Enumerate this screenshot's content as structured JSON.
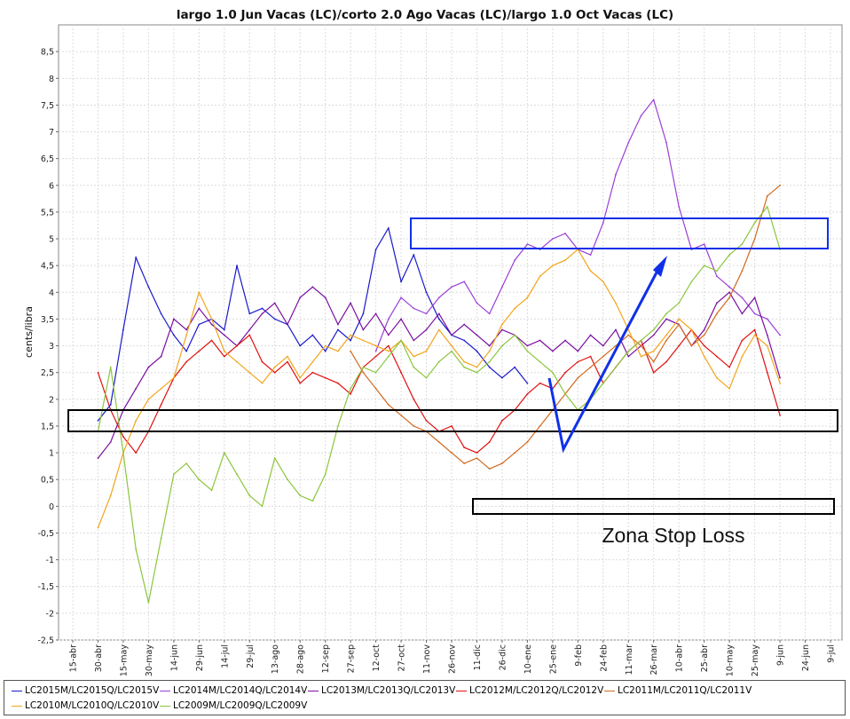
{
  "colors": {
    "LC2015": "#1a1acc",
    "LC2014": "#9a3fd6",
    "LC2013": "#7a0fa0",
    "LC2012": "#e01010",
    "LC2011": "#d26a1f",
    "LC2010": "#f2a51c",
    "LC2009": "#8cc63e",
    "annotation_blue": "#1030e8",
    "annotation_black": "#000000"
  },
  "chart_data": {
    "type": "line",
    "title": "largo 1.0 Jun Vacas (LC)/corto 2.0 Ago Vacas (LC)/largo 1.0 Oct Vacas (LC)",
    "xlabel": "",
    "ylabel": "cents/libra",
    "ylim": [
      -2.5,
      9
    ],
    "yticks": [
      "-2,5",
      "-2",
      "-1,5",
      "-1",
      "-0,5",
      "0",
      "0,5",
      "1",
      "1,5",
      "2",
      "2,5",
      "3",
      "3,5",
      "4",
      "4,5",
      "5",
      "5,5",
      "6",
      "6,5",
      "7",
      "7,5",
      "8",
      "8,5"
    ],
    "ytick_values": [
      -2.5,
      -2,
      -1.5,
      -1,
      -0.5,
      0,
      0.5,
      1,
      1.5,
      2,
      2.5,
      3,
      3.5,
      4,
      4.5,
      5,
      5.5,
      6,
      6.5,
      7,
      7.5,
      8,
      8.5
    ],
    "categories": [
      "15-abr",
      "30-abr",
      "15-may",
      "30-may",
      "14-jun",
      "29-jun",
      "14-jul",
      "29-jul",
      "13-ago",
      "28-ago",
      "12-sep",
      "27-sep",
      "12-oct",
      "27-oct",
      "11-nov",
      "26-nov",
      "11-dic",
      "26-dic",
      "10-ene",
      "25-ene",
      "9-feb",
      "24-feb",
      "11-mar",
      "26-mar",
      "10-abr",
      "25-abr",
      "10-may",
      "25-may",
      "9-jun",
      "24-jun",
      "9-jul"
    ],
    "x_index_range": [
      0,
      30
    ],
    "series": [
      {
        "name": "LC2015M/LC2015Q/LC2015V",
        "key": "LC2015",
        "x": [
          1,
          1.5,
          2,
          2.5,
          3,
          3.5,
          4,
          4.5,
          5,
          5.5,
          6,
          6.5,
          7,
          7.5,
          8,
          8.5,
          9,
          9.5,
          10,
          10.5,
          11,
          11.5,
          12,
          12.5,
          13,
          13.5,
          14,
          14.5,
          15,
          15.5,
          16,
          16.5,
          17,
          17.5,
          18,
          18.5,
          19,
          19.5,
          20,
          20.5,
          21,
          21.5,
          22,
          22.5,
          23,
          23.5,
          24,
          24.5,
          25,
          25.5,
          26,
          26.5,
          27,
          27.5,
          28,
          28.5,
          29,
          29.5,
          30
        ],
        "values": [
          1.6,
          1.9,
          3.3,
          4.65,
          4.1,
          3.6,
          3.2,
          2.9,
          3.4,
          3.5,
          3.3,
          4.5,
          3.6,
          3.7,
          3.5,
          3.4,
          3.0,
          3.2,
          2.9,
          3.3,
          3.1,
          3.6,
          4.8,
          5.2,
          4.2,
          4.7,
          4.0,
          3.5,
          3.2,
          3.1,
          2.9,
          2.6,
          2.4,
          2.6,
          2.3,
          null,
          null,
          null,
          null,
          null,
          null,
          null,
          null,
          null,
          null,
          null,
          null,
          null,
          null,
          null,
          null,
          null,
          null,
          null,
          null,
          null,
          null,
          null,
          null
        ]
      },
      {
        "name": "LC2014M/LC2014Q/LC2014V",
        "key": "LC2014",
        "x": [
          1,
          1.5,
          2,
          2.5,
          3,
          3.5,
          4,
          4.5,
          5,
          5.5,
          6,
          6.5,
          7,
          7.5,
          8,
          8.5,
          9,
          9.5,
          10,
          10.5,
          11,
          11.5,
          12,
          12.5,
          13,
          13.5,
          14,
          14.5,
          15,
          15.5,
          16,
          16.5,
          17,
          17.5,
          18,
          18.5,
          19,
          19.5,
          20,
          20.5,
          21,
          21.5,
          22,
          22.5,
          23,
          23.5,
          24,
          24.5,
          25,
          25.5,
          26,
          26.5,
          27,
          27.5,
          28,
          28.5,
          29,
          29.5,
          30
        ],
        "values": [
          null,
          null,
          null,
          null,
          null,
          null,
          null,
          null,
          null,
          null,
          null,
          null,
          null,
          null,
          null,
          null,
          null,
          null,
          null,
          null,
          null,
          null,
          2.9,
          3.5,
          3.9,
          3.7,
          3.6,
          3.9,
          4.1,
          4.2,
          3.8,
          3.6,
          4.1,
          4.6,
          4.9,
          4.8,
          5.0,
          5.1,
          4.8,
          4.7,
          5.3,
          6.2,
          6.8,
          7.3,
          7.6,
          6.8,
          5.6,
          4.8,
          4.9,
          4.3,
          4.1,
          3.9,
          3.6,
          3.5,
          3.2,
          null,
          null,
          null,
          null
        ]
      },
      {
        "name": "LC2013M/LC2013Q/LC2013V",
        "key": "LC2013",
        "x": [
          1,
          1.5,
          2,
          2.5,
          3,
          3.5,
          4,
          4.5,
          5,
          5.5,
          6,
          6.5,
          7,
          7.5,
          8,
          8.5,
          9,
          9.5,
          10,
          10.5,
          11,
          11.5,
          12,
          12.5,
          13,
          13.5,
          14,
          14.5,
          15,
          15.5,
          16,
          16.5,
          17,
          17.5,
          18,
          18.5,
          19,
          19.5,
          20,
          20.5,
          21,
          21.5,
          22,
          22.5,
          23,
          23.5,
          24,
          24.5,
          25,
          25.5,
          26,
          26.5,
          27,
          27.5,
          28,
          28.5,
          29,
          29.5,
          30
        ],
        "values": [
          0.9,
          1.2,
          1.8,
          2.2,
          2.6,
          2.8,
          3.5,
          3.3,
          3.7,
          3.4,
          3.2,
          3.0,
          3.3,
          3.6,
          3.8,
          3.4,
          3.9,
          4.1,
          3.9,
          3.4,
          3.8,
          3.3,
          3.6,
          3.2,
          3.5,
          3.1,
          3.3,
          3.6,
          3.2,
          3.4,
          3.2,
          3.0,
          3.3,
          3.2,
          3.0,
          3.1,
          2.9,
          3.1,
          2.9,
          3.2,
          3.0,
          3.3,
          2.8,
          3.0,
          3.2,
          3.5,
          3.4,
          3.0,
          3.3,
          3.8,
          4.0,
          3.6,
          3.9,
          3.2,
          2.4,
          null,
          null,
          null,
          null
        ]
      },
      {
        "name": "LC2012M/LC2012Q/LC2012V",
        "key": "LC2012",
        "x": [
          1,
          1.5,
          2,
          2.5,
          3,
          3.5,
          4,
          4.5,
          5,
          5.5,
          6,
          6.5,
          7,
          7.5,
          8,
          8.5,
          9,
          9.5,
          10,
          10.5,
          11,
          11.5,
          12,
          12.5,
          13,
          13.5,
          14,
          14.5,
          15,
          15.5,
          16,
          16.5,
          17,
          17.5,
          18,
          18.5,
          19,
          19.5,
          20,
          20.5,
          21,
          21.5,
          22,
          22.5,
          23,
          23.5,
          24,
          24.5,
          25,
          25.5,
          26,
          26.5,
          27,
          27.5,
          28,
          28.5,
          29,
          29.5,
          30
        ],
        "values": [
          2.5,
          1.8,
          1.3,
          1.0,
          1.4,
          1.9,
          2.4,
          2.7,
          2.9,
          3.1,
          2.8,
          3.0,
          3.2,
          2.7,
          2.5,
          2.7,
          2.3,
          2.5,
          2.4,
          2.3,
          2.1,
          2.6,
          2.8,
          3.0,
          2.5,
          2.0,
          1.6,
          1.4,
          1.5,
          1.1,
          1.0,
          1.2,
          1.6,
          1.8,
          2.1,
          2.3,
          2.2,
          2.5,
          2.7,
          2.8,
          2.3,
          2.6,
          2.9,
          3.1,
          2.5,
          2.7,
          3.0,
          3.3,
          3.0,
          2.8,
          2.6,
          3.1,
          3.3,
          2.5,
          1.7,
          null,
          null,
          null,
          null
        ]
      },
      {
        "name": "LC2011M/LC2011Q/LC2011V",
        "key": "LC2011",
        "x": [
          1,
          1.5,
          2,
          2.5,
          3,
          3.5,
          4,
          4.5,
          5,
          5.5,
          6,
          6.5,
          7,
          7.5,
          8,
          8.5,
          9,
          9.5,
          10,
          10.5,
          11,
          11.5,
          12,
          12.5,
          13,
          13.5,
          14,
          14.5,
          15,
          15.5,
          16,
          16.5,
          17,
          17.5,
          18,
          18.5,
          19,
          19.5,
          20,
          20.5,
          21,
          21.5,
          22,
          22.5,
          23,
          23.5,
          24,
          24.5,
          25,
          25.5,
          26,
          26.5,
          27,
          27.5,
          28,
          28.5,
          29,
          29.5,
          30
        ],
        "values": [
          null,
          null,
          null,
          null,
          null,
          null,
          null,
          null,
          null,
          null,
          null,
          null,
          null,
          null,
          null,
          null,
          null,
          null,
          null,
          null,
          2.9,
          2.5,
          2.2,
          1.9,
          1.7,
          1.5,
          1.4,
          1.2,
          1.0,
          0.8,
          0.9,
          0.7,
          0.8,
          1.0,
          1.2,
          1.5,
          1.8,
          2.1,
          2.4,
          2.6,
          2.8,
          3.0,
          3.2,
          3.0,
          2.7,
          3.1,
          3.4,
          3.0,
          3.2,
          3.6,
          3.9,
          4.4,
          5.0,
          5.8,
          6.0,
          null,
          null,
          null,
          null
        ]
      },
      {
        "name": "LC2010M/LC2010Q/LC2010V",
        "key": "LC2010",
        "x": [
          1,
          1.5,
          2,
          2.5,
          3,
          3.5,
          4,
          4.5,
          5,
          5.5,
          6,
          6.5,
          7,
          7.5,
          8,
          8.5,
          9,
          9.5,
          10,
          10.5,
          11,
          11.5,
          12,
          12.5,
          13,
          13.5,
          14,
          14.5,
          15,
          15.5,
          16,
          16.5,
          17,
          17.5,
          18,
          18.5,
          19,
          19.5,
          20,
          20.5,
          21,
          21.5,
          22,
          22.5,
          23,
          23.5,
          24,
          24.5,
          25,
          25.5,
          26,
          26.5,
          27,
          27.5,
          28,
          28.5,
          29,
          29.5,
          30
        ],
        "values": [
          -0.4,
          0.2,
          1.0,
          1.6,
          2.0,
          2.2,
          2.4,
          3.2,
          4.0,
          3.5,
          2.9,
          2.7,
          2.5,
          2.3,
          2.6,
          2.8,
          2.4,
          2.7,
          3.0,
          2.9,
          3.2,
          3.1,
          3.0,
          2.9,
          3.1,
          2.8,
          2.9,
          3.3,
          3.0,
          2.7,
          2.6,
          2.9,
          3.4,
          3.7,
          3.9,
          4.3,
          4.5,
          4.6,
          4.8,
          4.4,
          4.2,
          3.8,
          3.3,
          2.8,
          2.9,
          3.2,
          3.5,
          3.3,
          2.8,
          2.4,
          2.2,
          2.8,
          3.2,
          3.0,
          2.3,
          null,
          null,
          null,
          null
        ]
      },
      {
        "name": "LC2009M/LC2009Q/LC2009V",
        "key": "LC2009",
        "x": [
          1,
          1.5,
          2,
          2.5,
          3,
          3.5,
          4,
          4.5,
          5,
          5.5,
          6,
          6.5,
          7,
          7.5,
          8,
          8.5,
          9,
          9.5,
          10,
          10.5,
          11,
          11.5,
          12,
          12.5,
          13,
          13.5,
          14,
          14.5,
          15,
          15.5,
          16,
          16.5,
          17,
          17.5,
          18,
          18.5,
          19,
          19.5,
          20,
          20.5,
          21,
          21.5,
          22,
          22.5,
          23,
          23.5,
          24,
          24.5,
          25,
          25.5,
          26,
          26.5,
          27,
          27.5,
          28,
          28.5,
          29,
          29.5,
          30
        ],
        "values": [
          1.4,
          2.6,
          1.0,
          -0.8,
          -1.8,
          -0.6,
          0.6,
          0.8,
          0.5,
          0.3,
          1.0,
          0.6,
          0.2,
          0.0,
          0.9,
          0.5,
          0.2,
          0.1,
          0.6,
          1.5,
          2.2,
          2.6,
          2.5,
          2.8,
          3.1,
          2.6,
          2.4,
          2.7,
          2.9,
          2.6,
          2.5,
          2.7,
          3.0,
          3.2,
          2.9,
          2.7,
          2.5,
          2.1,
          1.8,
          2.0,
          2.3,
          2.6,
          2.9,
          3.1,
          3.3,
          3.6,
          3.8,
          4.2,
          4.5,
          4.4,
          4.7,
          4.9,
          5.3,
          5.6,
          4.8,
          null,
          null,
          null,
          null
        ]
      }
    ],
    "annotations": [
      "Zona Stop Loss"
    ]
  },
  "legend": {
    "row1": [
      {
        "label": "LC2015M/LC2015Q/LC2015V",
        "key": "LC2015"
      },
      {
        "label": "LC2014M/LC2014Q/LC2014V",
        "key": "LC2014"
      },
      {
        "label": "LC2013M/LC2013Q/LC2013V",
        "key": "LC2013"
      },
      {
        "label": "LC2012M/LC2012Q/LC2012V",
        "key": "LC2012"
      },
      {
        "label": "LC2011M/LC2011Q/LC2011V",
        "key": "LC2011"
      }
    ],
    "row2": [
      {
        "label": "LC2010M/LC2010Q/LC2010V",
        "key": "LC2010"
      },
      {
        "label": "LC2009M/LC2009Q/LC2009V",
        "key": "LC2009"
      }
    ]
  }
}
